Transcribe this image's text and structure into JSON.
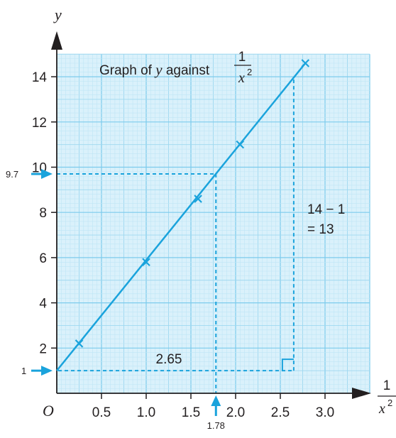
{
  "chart_data": {
    "type": "line",
    "title_prefix": "Graph of",
    "title_var": "y",
    "title_mid": "against",
    "title_frac_num": "1",
    "title_frac_den_var": "x",
    "title_frac_den_exp": "2",
    "xlabel_num": "1",
    "xlabel_den_var": "x",
    "xlabel_den_exp": "2",
    "ylabel": "y",
    "origin_label": "O",
    "xlim": [
      0,
      3.5
    ],
    "ylim": [
      0,
      15
    ],
    "grid": true,
    "x_ticks": [
      0.5,
      1.0,
      1.5,
      2.0,
      2.5,
      3.0
    ],
    "x_tick_labels": [
      "0.5",
      "1.0",
      "1.5",
      "2.0",
      "2.5",
      "3.0"
    ],
    "y_ticks": [
      2,
      4,
      6,
      8,
      10,
      12,
      14
    ],
    "y_tick_labels": [
      "2",
      "4",
      "6",
      "8",
      "10",
      "12",
      "14"
    ],
    "points": [
      {
        "x": 0.25,
        "y": 2.2
      },
      {
        "x": 1.0,
        "y": 5.8
      },
      {
        "x": 1.58,
        "y": 8.6
      },
      {
        "x": 2.05,
        "y": 11.0
      },
      {
        "x": 2.78,
        "y": 14.6
      }
    ],
    "best_fit_line": {
      "x": [
        0,
        2.78
      ],
      "y": [
        1,
        14.6
      ]
    },
    "reading_lines": [
      {
        "value_y": 9.7,
        "label_y": "9.7",
        "value_x": 1.78,
        "label_x": "1.78"
      }
    ],
    "intercept": {
      "y": 1,
      "label": "1"
    },
    "gradient_triangle": {
      "x0": 0,
      "x1": 2.65,
      "y0": 1,
      "y1": 14,
      "run_label": "2.65",
      "rise_label_line1": "14 − 1",
      "rise_label_line2": "= 13"
    },
    "colors": {
      "grid_minor": "#bfe5f5",
      "grid_major": "#7ccbec",
      "line": "#1aa3dc",
      "axis": "#231f20",
      "background": "#daf1fb"
    }
  }
}
